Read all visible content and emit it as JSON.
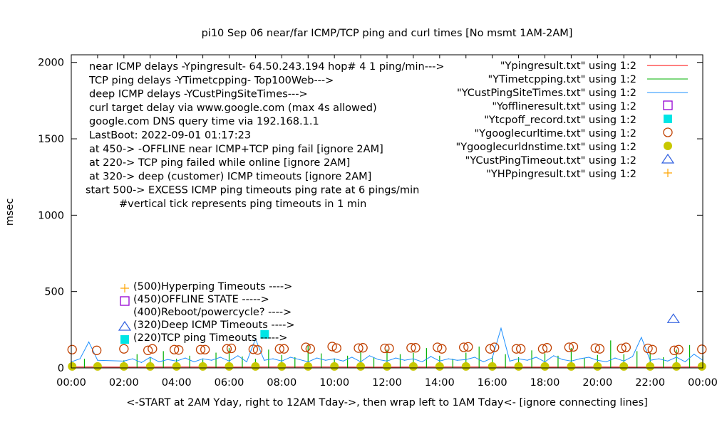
{
  "chart_data": {
    "type": "line",
    "title": "pi10 Sep 06  near/far ICMP/TCP ping and curl times [No msmt 1AM-2AM]",
    "xlabel": "<-START at 2AM Yday, right to 12AM Tday->, then wrap left to 1AM Tday<- [ignore connecting lines]",
    "ylabel": "msec",
    "xlim": [
      "00:00",
      "24:00"
    ],
    "ylim": [
      0,
      2050
    ],
    "x_ticks": [
      "00:00",
      "02:00",
      "04:00",
      "06:00",
      "08:00",
      "10:00",
      "12:00",
      "14:00",
      "16:00",
      "18:00",
      "20:00",
      "22:00",
      "00:00"
    ],
    "y_ticks": [
      0,
      500,
      1000,
      1500,
      2000
    ],
    "grid": false,
    "legend_placement": "top-right",
    "notes": [
      "near ICMP delays -Ypingresult- 64.50.243.194 hop# 4 1 ping/min--->",
      "TCP ping delays -YTimetcpping- Top100Web--->",
      "deep ICMP delays -YCustPingSiteTimes--->",
      "curl target delay via www.google.com (max 4s allowed)",
      "google.com DNS query time via 192.168.1.1",
      "LastBoot: 2022-09-01 01:17:23",
      "at 450-> -OFFLINE near ICMP+TCP ping fail [ignore 2AM]",
      "at 220-> TCP ping failed while online [ignore 2AM]",
      "at 320-> deep (customer) ICMP timeouts [ignore 2AM]",
      "start 500-> EXCESS ICMP ping timeouts ping rate at 6 pings/min",
      "#vertical tick represents ping timeouts in 1 min"
    ],
    "marker_key": [
      {
        "label": "(500)Hyperping Timeouts ---->",
        "marker": "plus",
        "color": "#ffa500"
      },
      {
        "label": "(450)OFFLINE STATE ----->",
        "marker": "open-square",
        "color": "#9400d3"
      },
      {
        "label": "(400)Reboot/powercycle? ---->",
        "marker": "none",
        "color": "#000000"
      },
      {
        "label": "(320)Deep ICMP Timeouts ---->",
        "marker": "open-triangle",
        "color": "#3060e0"
      },
      {
        "label": "(220)TCP ping Timeouts ----->",
        "marker": "filled-square",
        "color": "#00e5e5"
      }
    ],
    "series": [
      {
        "name": "\"Ypingresult.txt\" using 1:2",
        "style": "line",
        "color": "#ff0000",
        "x": [
          "00:00",
          "02:00",
          "04:00",
          "06:00",
          "08:00",
          "10:00",
          "12:00",
          "14:00",
          "16:00",
          "18:00",
          "20:00",
          "22:00",
          "24:00"
        ],
        "y": [
          6,
          5,
          6,
          5,
          6,
          6,
          5,
          6,
          6,
          5,
          6,
          5,
          6
        ]
      },
      {
        "name": "\"YTimetcpping.txt\" using 1:2",
        "style": "impulses",
        "color": "#00b000",
        "x": [
          "00:00",
          "00:30",
          "01:00",
          "02:00",
          "02:30",
          "03:00",
          "03:30",
          "04:00",
          "04:30",
          "05:00",
          "05:30",
          "06:00",
          "06:30",
          "07:00",
          "07:30",
          "08:00",
          "08:30",
          "09:00",
          "09:30",
          "10:00",
          "10:30",
          "11:00",
          "11:30",
          "12:00",
          "12:30",
          "13:00",
          "13:30",
          "14:00",
          "14:30",
          "15:00",
          "15:30",
          "16:00",
          "16:30",
          "17:00",
          "17:30",
          "18:00",
          "18:30",
          "19:00",
          "19:30",
          "20:00",
          "20:30",
          "21:00",
          "21:30",
          "22:00",
          "22:30",
          "23:00",
          "23:30",
          "24:00"
        ],
        "y": [
          45,
          60,
          35,
          50,
          90,
          70,
          110,
          60,
          80,
          55,
          100,
          130,
          75,
          60,
          120,
          85,
          70,
          150,
          95,
          60,
          80,
          110,
          70,
          120,
          90,
          100,
          130,
          80,
          60,
          100,
          140,
          75,
          90,
          70,
          115,
          95,
          80,
          130,
          65,
          85,
          180,
          90,
          110,
          100,
          70,
          120,
          150,
          80
        ]
      },
      {
        "name": "\"YCustPingSiteTimes.txt\" using 1:2",
        "style": "line",
        "color": "#1e90ff",
        "x": [
          "00:00",
          "00:20",
          "00:40",
          "01:00",
          "02:00",
          "02:20",
          "02:40",
          "03:00",
          "03:20",
          "03:40",
          "04:00",
          "04:20",
          "04:40",
          "05:00",
          "05:20",
          "05:40",
          "06:00",
          "06:20",
          "06:40",
          "07:00",
          "07:20",
          "07:40",
          "08:00",
          "08:20",
          "08:40",
          "09:00",
          "09:20",
          "09:40",
          "10:00",
          "10:20",
          "10:40",
          "11:00",
          "11:20",
          "11:40",
          "12:00",
          "12:20",
          "12:40",
          "13:00",
          "13:20",
          "13:40",
          "14:00",
          "14:20",
          "14:40",
          "15:00",
          "15:20",
          "15:40",
          "16:00",
          "16:20",
          "16:40",
          "17:00",
          "17:20",
          "17:40",
          "18:00",
          "18:20",
          "18:40",
          "19:00",
          "19:20",
          "19:40",
          "20:00",
          "20:20",
          "20:40",
          "21:00",
          "21:20",
          "21:40",
          "22:00",
          "22:20",
          "22:40",
          "23:00",
          "23:20",
          "23:40",
          "24:00"
        ],
        "y": [
          40,
          60,
          170,
          50,
          45,
          60,
          35,
          70,
          40,
          55,
          45,
          65,
          40,
          60,
          50,
          70,
          45,
          80,
          40,
          190,
          50,
          60,
          45,
          70,
          55,
          40,
          65,
          50,
          60,
          45,
          70,
          40,
          80,
          55,
          45,
          65,
          50,
          60,
          40,
          75,
          45,
          60,
          50,
          55,
          70,
          40,
          65,
          260,
          45,
          60,
          50,
          70,
          40,
          80,
          55,
          45,
          60,
          70,
          50,
          40,
          65,
          45,
          75,
          200,
          50,
          60,
          45,
          70,
          40,
          90,
          50
        ]
      }
    ],
    "marker_series": [
      {
        "name": "\"Yofflineresult.txt\" using 1:2",
        "marker": "open-square",
        "color": "#9400d3",
        "x": [],
        "y": []
      },
      {
        "name": "\"Ytcpoff_record.txt\" using 1:2",
        "marker": "filled-square",
        "color": "#00e5e5",
        "x": [
          "07:21"
        ],
        "y": [
          220
        ]
      },
      {
        "name": "\"Ygooglecurltime.txt\" using 1:2",
        "marker": "open-circle",
        "color": "#c04000",
        "x": [
          "00:02",
          "00:58",
          "02:00",
          "02:55",
          "03:05",
          "03:55",
          "04:05",
          "04:55",
          "05:05",
          "05:55",
          "06:05",
          "06:55",
          "07:05",
          "07:55",
          "08:05",
          "08:55",
          "09:05",
          "09:55",
          "10:05",
          "10:55",
          "11:05",
          "11:55",
          "12:05",
          "12:55",
          "13:05",
          "13:55",
          "14:05",
          "14:55",
          "15:05",
          "15:55",
          "16:05",
          "16:55",
          "17:05",
          "17:55",
          "18:05",
          "18:55",
          "19:05",
          "19:55",
          "20:05",
          "20:55",
          "21:05",
          "21:55",
          "22:05",
          "22:55",
          "23:05",
          "23:58"
        ],
        "y": [
          120,
          115,
          125,
          115,
          125,
          120,
          118,
          120,
          120,
          125,
          128,
          122,
          118,
          125,
          125,
          135,
          125,
          140,
          130,
          130,
          132,
          128,
          128,
          132,
          132,
          135,
          125,
          135,
          138,
          125,
          135,
          125,
          125,
          125,
          132,
          135,
          138,
          130,
          125,
          128,
          135,
          128,
          120,
          115,
          120,
          122
        ]
      },
      {
        "name": "\"Ygooglecurldnstime.txt\" using 1:2",
        "marker": "filled-circle",
        "color": "#c8c800",
        "x": [
          "00:02",
          "01:00",
          "02:00",
          "03:00",
          "04:00",
          "05:00",
          "06:00",
          "07:00",
          "08:00",
          "09:00",
          "10:00",
          "11:00",
          "12:00",
          "13:00",
          "14:00",
          "15:00",
          "16:00",
          "17:00",
          "18:00",
          "19:00",
          "20:00",
          "21:00",
          "22:00",
          "23:00",
          "23:58"
        ],
        "y": [
          10,
          10,
          10,
          10,
          10,
          10,
          10,
          10,
          10,
          10,
          10,
          10,
          10,
          10,
          10,
          10,
          10,
          10,
          10,
          10,
          10,
          10,
          10,
          10,
          10
        ]
      },
      {
        "name": "\"YCustPingTimeout.txt\" using 1:2",
        "marker": "open-triangle",
        "color": "#3060e0",
        "x": [
          "22:53"
        ],
        "y": [
          320
        ]
      },
      {
        "name": "\"YHPpingresult.txt\" using 1:2",
        "marker": "plus",
        "color": "#ffa500",
        "x": [],
        "y": []
      }
    ]
  }
}
